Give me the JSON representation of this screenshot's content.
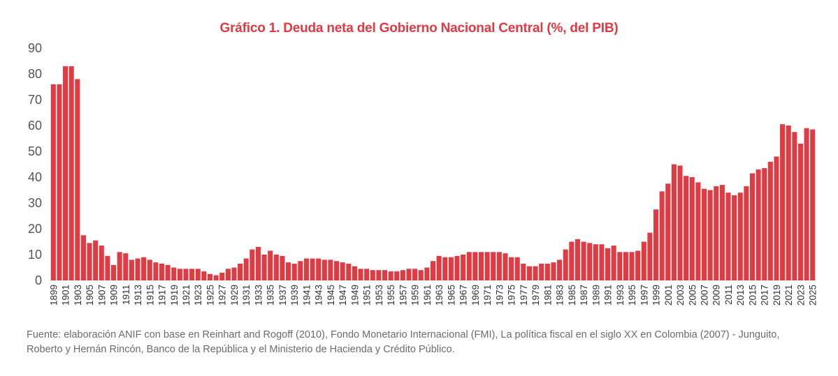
{
  "chart_data": {
    "type": "bar",
    "title": "Gráfico 1. Deuda neta del Gobierno Nacional Central (%, del PIB)",
    "xlabel": "",
    "ylabel": "",
    "ylim": [
      0,
      90
    ],
    "yticks": [
      "0",
      "10",
      "20",
      "30",
      "40",
      "50",
      "60",
      "70",
      "80",
      "90"
    ],
    "grid": false,
    "bar_color": "#e03a42",
    "years": [
      1899,
      1900,
      1901,
      1902,
      1903,
      1904,
      1905,
      1906,
      1907,
      1908,
      1909,
      1910,
      1911,
      1912,
      1913,
      1914,
      1915,
      1916,
      1917,
      1918,
      1919,
      1920,
      1921,
      1922,
      1923,
      1924,
      1925,
      1926,
      1927,
      1928,
      1929,
      1930,
      1931,
      1932,
      1933,
      1934,
      1935,
      1936,
      1937,
      1938,
      1939,
      1940,
      1941,
      1942,
      1943,
      1944,
      1945,
      1946,
      1947,
      1948,
      1949,
      1950,
      1951,
      1952,
      1953,
      1954,
      1955,
      1956,
      1957,
      1958,
      1959,
      1960,
      1961,
      1962,
      1963,
      1964,
      1965,
      1966,
      1967,
      1968,
      1969,
      1970,
      1971,
      1972,
      1973,
      1974,
      1975,
      1976,
      1977,
      1978,
      1979,
      1980,
      1981,
      1982,
      1983,
      1984,
      1985,
      1986,
      1987,
      1988,
      1989,
      1990,
      1991,
      1992,
      1993,
      1994,
      1995,
      1996,
      1997,
      1998,
      1999,
      2000,
      2001,
      2002,
      2003,
      2004,
      2005,
      2006,
      2007,
      2008,
      2009,
      2010,
      2011,
      2012,
      2013,
      2014,
      2015,
      2016,
      2017,
      2018,
      2019,
      2020,
      2021,
      2022,
      2023,
      2024,
      2025
    ],
    "values": [
      76,
      76,
      83,
      83,
      78,
      17.5,
      14.5,
      15.5,
      13.5,
      9.5,
      6,
      11,
      10.5,
      8,
      8.5,
      9,
      8,
      7,
      6.5,
      6,
      5,
      4.5,
      4.5,
      4.5,
      4.5,
      3.5,
      2.5,
      2,
      3,
      4.5,
      5,
      6.5,
      8.5,
      12,
      13,
      10,
      11.5,
      10,
      9.5,
      7,
      6.5,
      7.5,
      8.5,
      8.5,
      8.5,
      8,
      8,
      7.5,
      7,
      6.5,
      5.5,
      4.5,
      4.5,
      4,
      4,
      4,
      3.5,
      3.5,
      4,
      4.5,
      4.5,
      4,
      5,
      7.5,
      9.5,
      9,
      9,
      9.5,
      10,
      11,
      11,
      11,
      11,
      11,
      11,
      10.5,
      9,
      9,
      6.5,
      5.5,
      5.5,
      6.5,
      6.5,
      7,
      8,
      12,
      15,
      16,
      15,
      14.5,
      14,
      14,
      12.5,
      13.5,
      11,
      11,
      11,
      11.5,
      15,
      18.5,
      27.5,
      34.5,
      37.5,
      45,
      44.5,
      40.5,
      40,
      38,
      35.5,
      35,
      36.5,
      37,
      34,
      33,
      34,
      36.5,
      41.5,
      43,
      43.5,
      46,
      48,
      60.5,
      60,
      57.5,
      53,
      59,
      58.5
    ],
    "x_tick_labels": [
      "1899",
      "1901",
      "1903",
      "1905",
      "1907",
      "1909",
      "1911",
      "1913",
      "1915",
      "1917",
      "1919",
      "1921",
      "1923",
      "1925",
      "1927",
      "1929",
      "1931",
      "1933",
      "1935",
      "1937",
      "1939",
      "1941",
      "1943",
      "1945",
      "1947",
      "1949",
      "1951",
      "1953",
      "1955",
      "1957",
      "1959",
      "1961",
      "1963",
      "1965",
      "1967",
      "1969",
      "1971",
      "1973",
      "1975",
      "1977",
      "1979",
      "1981",
      "1983",
      "1985",
      "1987",
      "1989",
      "1991",
      "1993",
      "1995",
      "1997",
      "1999",
      "2001",
      "2003",
      "2005",
      "2007",
      "2009",
      "2011",
      "2013",
      "2015",
      "2017",
      "2019",
      "2021",
      "2023",
      "2025"
    ]
  },
  "source_note": "Fuente: elaboración ANIF con base en Reinhart and Rogoff (2010), Fondo Monetario Internacional (FMI), La política fiscal en el siglo XX en Colombia (2007) - Junguito, Roberto y Hernán Rincón, Banco de la República y el Ministerio de Hacienda y Crédito Público."
}
